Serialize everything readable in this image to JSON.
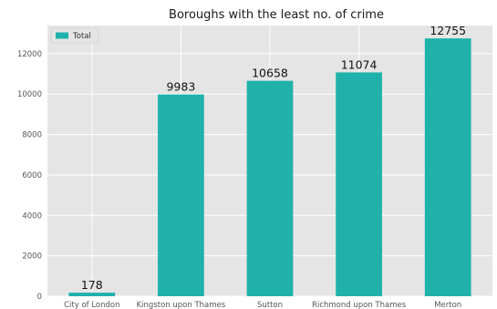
{
  "chart_data": {
    "type": "bar",
    "title": "Boroughs with the least no. of crime",
    "xlabel": "",
    "ylabel": "",
    "categories": [
      "City of London",
      "Kingston upon Thames",
      "Sutton",
      "Richmond upon Thames",
      "Merton"
    ],
    "series": [
      {
        "name": "Total",
        "values": [
          178,
          9983,
          10658,
          11074,
          12755
        ],
        "color": "#20b2aa"
      }
    ],
    "data_labels": [
      "178",
      "9983",
      "10658",
      "11074",
      "12755"
    ],
    "yticks": [
      0,
      2000,
      4000,
      6000,
      8000,
      10000,
      12000
    ],
    "ylim": [
      0,
      13393
    ],
    "grid": true,
    "legend": {
      "position": "top-left",
      "entries": [
        "Total"
      ]
    },
    "colors": {
      "plot_background": "#e5e5e5",
      "grid": "#ffffff",
      "bar": "#20b2aa"
    }
  }
}
